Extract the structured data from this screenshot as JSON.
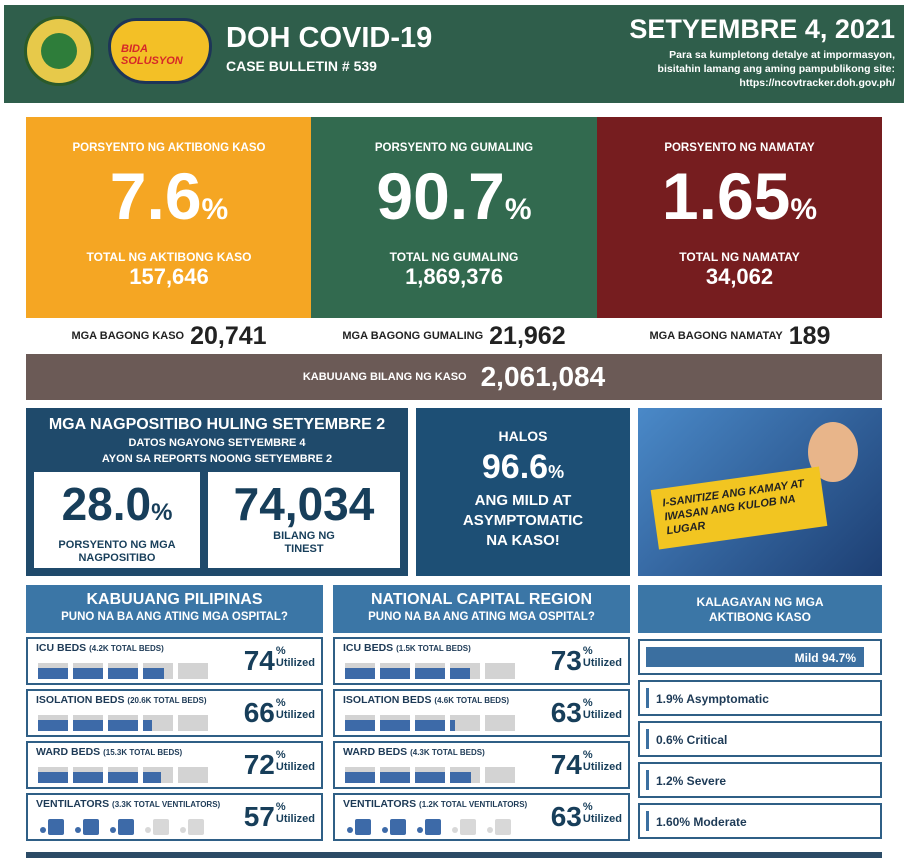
{
  "header": {
    "title": "DOH COVID-19",
    "bulletin": "CASE BULLETIN # 539",
    "date": "SETYEMBRE 4, 2021",
    "note_1": "Para sa kumpletong detalye at impormasyon,",
    "note_2": "bisitahin lamang ang aming pampublikong site:",
    "url": "https://ncovtracker.doh.gov.ph/",
    "logo_text": "BIDA SOLUSYON"
  },
  "stats": [
    {
      "label": "PORSYENTO NG AKTIBONG KASO",
      "pct": "7.6",
      "total_label": "TOTAL NG AKTIBONG KASO",
      "total": "157,646",
      "color": "#f5a623"
    },
    {
      "label": "PORSYENTO NG GUMALING",
      "pct": "90.7",
      "total_label": "TOTAL NG GUMALING",
      "total": "1,869,376",
      "color": "#326a4f"
    },
    {
      "label": "PORSYENTO NG NAMATAY",
      "pct": "1.65",
      "total_label": "TOTAL NG NAMATAY",
      "total": "34,062",
      "color": "#761d1f"
    }
  ],
  "pct_sign": "%",
  "new": [
    {
      "label": "MGA BAGONG KASO",
      "value": "20,741"
    },
    {
      "label": "MGA BAGONG GUMALING",
      "value": "21,962"
    },
    {
      "label": "MGA BAGONG NAMATAY",
      "value": "189"
    }
  ],
  "total": {
    "label": "KABUUANG BILANG NG KASO",
    "value": "2,061,084"
  },
  "positivity": {
    "title": "MGA NAGPOSITIBO HULING SETYEMBRE 2",
    "sub1": "DATOS NGAYONG SETYEMBRE 4",
    "sub2": "AYON SA REPORTS NOONG SETYEMBRE 2",
    "rate": "28.0",
    "rate_l1": "PORSYENTO NG MGA",
    "rate_l2": "NAGPOSITIBO",
    "tested": "74,034",
    "tested_l1": "BILANG NG",
    "tested_l2": "TINEST"
  },
  "mild": {
    "halos": "HALOS",
    "value": "96.6",
    "l1": "ANG MILD AT",
    "l2": "ASYMPTOMATIC",
    "l3": "NA KASO!"
  },
  "illustration": {
    "text": "I-SANITIZE ANG KAMAY AT IWASAN ANG KULOB NA LUGAR"
  },
  "utilized": "Utilized",
  "panels": [
    {
      "title": "KABUUANG PILIPINAS",
      "subtitle": "PUNO NA BA ANG ATING MGA OSPITAL?",
      "rows": [
        {
          "label": "ICU BEDS",
          "total": "(4.2K TOTAL BEDS)",
          "pct": 74,
          "type": "bed"
        },
        {
          "label": "ISOLATION BEDS",
          "total": "(20.6K TOTAL BEDS)",
          "pct": 66,
          "type": "bed"
        },
        {
          "label": "WARD BEDS",
          "total": "(15.3K TOTAL BEDS)",
          "pct": 72,
          "type": "bed"
        },
        {
          "label": "VENTILATORS",
          "total": "(3.3K TOTAL VENTILATORS)",
          "pct": 57,
          "type": "vent"
        }
      ]
    },
    {
      "title": "NATIONAL CAPITAL REGION",
      "subtitle": "PUNO NA BA ANG ATING MGA OSPITAL?",
      "rows": [
        {
          "label": "ICU BEDS",
          "total": "(1.5K TOTAL BEDS)",
          "pct": 73,
          "type": "bed"
        },
        {
          "label": "ISOLATION BEDS",
          "total": "(4.6K TOTAL BEDS)",
          "pct": 63,
          "type": "bed"
        },
        {
          "label": "WARD BEDS",
          "total": "(4.3K TOTAL BEDS)",
          "pct": 74,
          "type": "bed"
        },
        {
          "label": "VENTILATORS",
          "total": "(1.2K TOTAL VENTILATORS)",
          "pct": 63,
          "type": "vent"
        }
      ]
    }
  ],
  "severity": {
    "title1": "KALAGAYAN NG MGA",
    "title2": "AKTIBONG KASO",
    "items": [
      {
        "text": "Mild 94.7%",
        "value": 94.7
      },
      {
        "text": "1.9% Asymptomatic",
        "value": 1.9
      },
      {
        "text": "0.6% Critical",
        "value": 0.6
      },
      {
        "text": "1.2% Severe",
        "value": 1.2
      },
      {
        "text": "1.60% Moderate",
        "value": 1.6
      }
    ]
  }
}
